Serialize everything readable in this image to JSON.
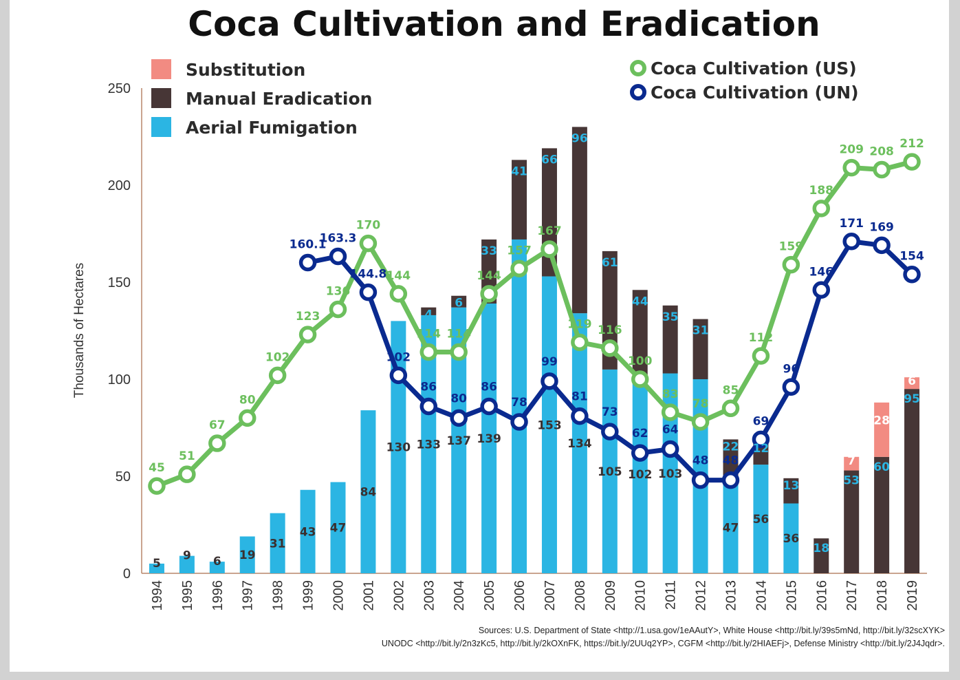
{
  "chart_data": {
    "type": "bar",
    "title": "Coca Cultivation and Eradication",
    "ylabel": "Thousands of Hectares",
    "xlabel": "",
    "ylim": [
      0,
      250
    ],
    "yticks": [
      0,
      50,
      100,
      150,
      200,
      250
    ],
    "grid": false,
    "colors": {
      "substitution": "#f28b82",
      "manual": "#473636",
      "aerial": "#2bb5e3",
      "us": "#6cbf5d",
      "un": "#0a2a8f"
    },
    "legend_bars": [
      "Substitution",
      "Manual Eradication",
      "Aerial Fumigation"
    ],
    "legend_lines": [
      "Coca Cultivation (US)",
      "Coca Cultivation (UN)"
    ],
    "categories": [
      "1994",
      "1995",
      "1996",
      "1997",
      "1998",
      "1999",
      "2000",
      "2001",
      "2002",
      "2003",
      "2004",
      "2005",
      "2006",
      "2007",
      "2008",
      "2009",
      "2010",
      "2011",
      "2012",
      "2013",
      "2014",
      "2015",
      "2016",
      "2017",
      "2018",
      "2019"
    ],
    "series": [
      {
        "name": "Aerial Fumigation",
        "kind": "bar",
        "values": [
          5,
          9,
          6,
          19,
          31,
          43,
          47,
          84,
          130,
          133,
          137,
          139,
          172,
          153,
          134,
          105,
          102,
          103,
          100,
          47,
          56,
          36,
          0,
          0,
          0,
          0
        ]
      },
      {
        "name": "Manual Eradication",
        "kind": "bar",
        "values": [
          0,
          0,
          0,
          0,
          0,
          0,
          0,
          0,
          0,
          4,
          6,
          33,
          41,
          66,
          96,
          61,
          44,
          35,
          31,
          22,
          12,
          13,
          18,
          53,
          60,
          95
        ]
      },
      {
        "name": "Substitution",
        "kind": "bar",
        "values": [
          0,
          0,
          0,
          0,
          0,
          0,
          0,
          0,
          0,
          0,
          0,
          0,
          0,
          0,
          0,
          0,
          0,
          0,
          0,
          0,
          0,
          0,
          0,
          7,
          28,
          6
        ]
      },
      {
        "name": "Coca Cultivation (US)",
        "kind": "line",
        "values": [
          45,
          51,
          67,
          80,
          102,
          123,
          136,
          170,
          144,
          114,
          114,
          144,
          157,
          167,
          119,
          116,
          100,
          83,
          78,
          85,
          112,
          159,
          188,
          209,
          208,
          212
        ]
      },
      {
        "name": "Coca Cultivation (UN)",
        "kind": "line",
        "values": [
          null,
          null,
          null,
          null,
          null,
          160.1,
          163.3,
          144.8,
          102,
          86,
          80,
          86,
          78,
          99,
          81,
          73,
          62,
          64,
          48,
          48,
          69,
          96,
          146,
          171,
          169,
          154
        ]
      }
    ],
    "aerial_labels": [
      "5",
      "9",
      "6",
      "19",
      "31",
      "43",
      "47",
      "84",
      "130",
      "133",
      "137",
      "139",
      "",
      "153",
      "134",
      "105",
      "102",
      "103",
      "",
      "47",
      "56",
      "36",
      "",
      "",
      "",
      ""
    ],
    "manual_labels": [
      "",
      "",
      "",
      "",
      "",
      "",
      "",
      "",
      "",
      "4",
      "6",
      "33",
      "41",
      "66",
      "96",
      "61",
      "44",
      "35",
      "31",
      "22",
      "12",
      "13",
      "18",
      "53",
      "60",
      "95"
    ],
    "substitution_labels": [
      "",
      "",
      "",
      "",
      "",
      "",
      "",
      "",
      "",
      "",
      "",
      "",
      "",
      "",
      "",
      "",
      "",
      "",
      "",
      "",
      "",
      "",
      "",
      "7",
      "28",
      "6"
    ],
    "us_labels": [
      "45",
      "51",
      "67",
      "80",
      "102",
      "123",
      "136",
      "170",
      "144",
      "114",
      "114",
      "144",
      "157",
      "167",
      "119",
      "116",
      "100",
      "83",
      "78",
      "85",
      "112",
      "159",
      "188",
      "209",
      "208",
      "212"
    ],
    "un_labels": [
      "",
      "",
      "",
      "",
      "",
      "160.1",
      "163.3",
      "144.8",
      "102",
      "86",
      "80",
      "86",
      "78",
      "99",
      "81",
      "73",
      "62",
      "64",
      "48",
      "48",
      "69",
      "96",
      "146",
      "171",
      "169",
      "154"
    ]
  },
  "sources": {
    "line1": "Sources: U.S. Department of State <http://1.usa.gov/1eAAutY>, White House <http://bit.ly/39s5mNd, http://bit.ly/32scXYK>",
    "line2": "UNODC <http://bit.ly/2n3zKc5, http://bit.ly/2kOXnFK, https://bit.ly/2UUq2YP>, CGFM <http://bit.ly/2HIAEFj>, Defense Ministry <http://bit.ly/2J4Jqdr>."
  }
}
